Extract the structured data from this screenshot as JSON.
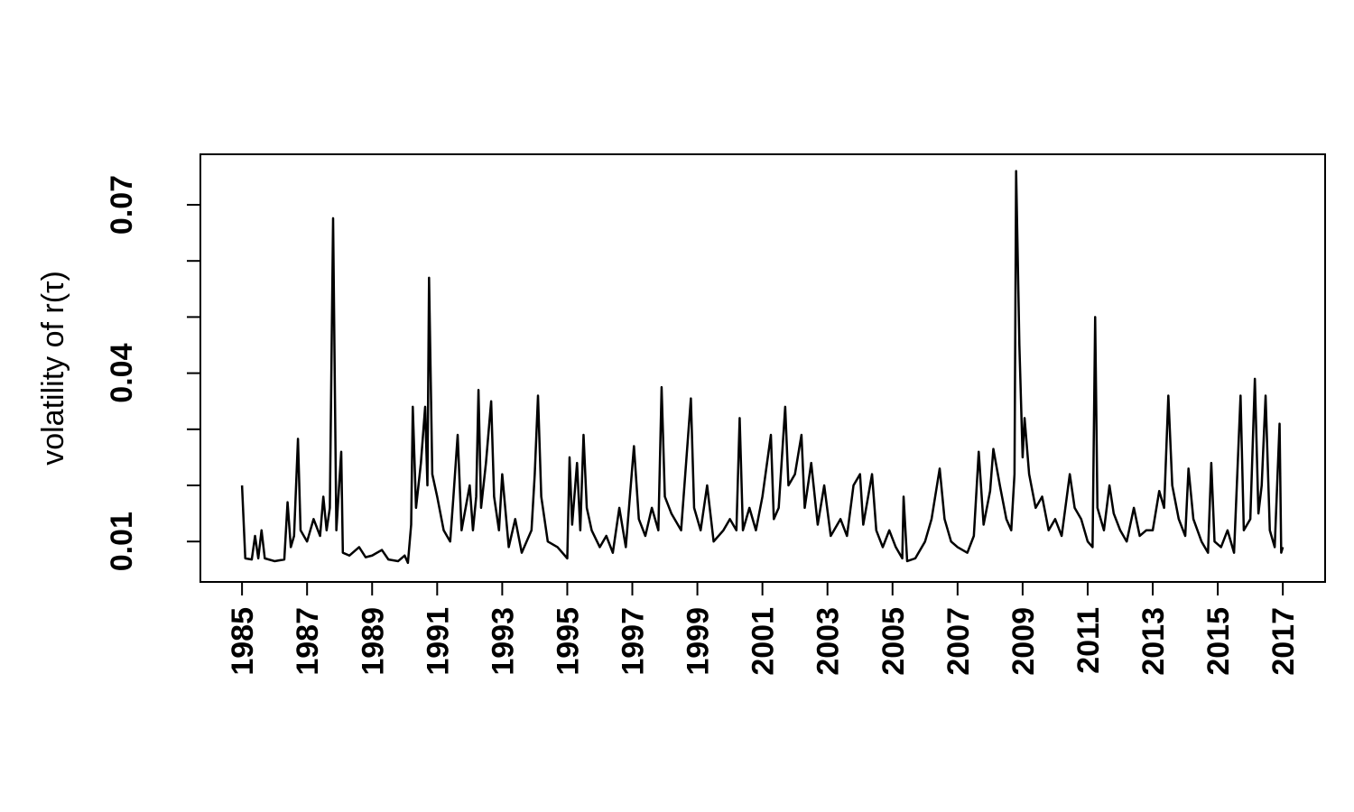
{
  "chart_data": {
    "type": "line",
    "ylabel": "volatility of  r(τ)",
    "color": "#000000",
    "x": [
      1985.0,
      1985.1,
      1985.3,
      1985.4,
      1985.5,
      1985.6,
      1985.7,
      1986.0,
      1986.3,
      1986.4,
      1986.5,
      1986.6,
      1986.72,
      1986.8,
      1987.0,
      1987.2,
      1987.4,
      1987.5,
      1987.6,
      1987.7,
      1987.8,
      1987.9,
      1988.05,
      1988.1,
      1988.3,
      1988.6,
      1988.8,
      1989.0,
      1989.3,
      1989.5,
      1989.8,
      1990.0,
      1990.1,
      1990.2,
      1990.25,
      1990.35,
      1990.5,
      1990.63,
      1990.7,
      1990.75,
      1990.85,
      1991.0,
      1991.2,
      1991.4,
      1991.5,
      1991.63,
      1991.75,
      1992.0,
      1992.1,
      1992.2,
      1992.27,
      1992.35,
      1992.5,
      1992.66,
      1992.75,
      1992.9,
      1993.0,
      1993.2,
      1993.4,
      1993.6,
      1993.9,
      1994.0,
      1994.1,
      1994.2,
      1994.4,
      1994.7,
      1995.0,
      1995.07,
      1995.15,
      1995.3,
      1995.4,
      1995.5,
      1995.6,
      1995.75,
      1996.0,
      1996.2,
      1996.4,
      1996.6,
      1996.8,
      1997.05,
      1997.2,
      1997.4,
      1997.6,
      1997.8,
      1997.9,
      1998.0,
      1998.2,
      1998.5,
      1998.8,
      1998.9,
      1999.1,
      1999.3,
      1999.5,
      1999.8,
      2000.0,
      2000.2,
      2000.3,
      2000.4,
      2000.6,
      2000.8,
      2001.0,
      2001.26,
      2001.35,
      2001.5,
      2001.7,
      2001.8,
      2002.0,
      2002.2,
      2002.3,
      2002.5,
      2002.7,
      2002.9,
      2003.1,
      2003.4,
      2003.6,
      2003.8,
      2004.0,
      2004.1,
      2004.37,
      2004.5,
      2004.7,
      2004.9,
      2005.1,
      2005.3,
      2005.34,
      2005.45,
      2005.7,
      2006.0,
      2006.2,
      2006.45,
      2006.6,
      2006.8,
      2007.0,
      2007.3,
      2007.5,
      2007.65,
      2007.8,
      2008.0,
      2008.1,
      2008.3,
      2008.5,
      2008.65,
      2008.75,
      2008.8,
      2008.9,
      2009.0,
      2009.06,
      2009.2,
      2009.4,
      2009.6,
      2009.8,
      2010.0,
      2010.2,
      2010.45,
      2010.6,
      2010.8,
      2011.0,
      2011.15,
      2011.23,
      2011.3,
      2011.5,
      2011.67,
      2011.8,
      2012.0,
      2012.2,
      2012.42,
      2012.6,
      2012.8,
      2013.0,
      2013.2,
      2013.35,
      2013.48,
      2013.6,
      2013.8,
      2014.0,
      2014.1,
      2014.25,
      2014.5,
      2014.7,
      2014.8,
      2014.9,
      2015.1,
      2015.3,
      2015.5,
      2015.7,
      2015.8,
      2016.0,
      2016.14,
      2016.25,
      2016.35,
      2016.47,
      2016.6,
      2016.75,
      2016.9,
      2016.95,
      2017.0
    ],
    "values": [
      0.02,
      0.007,
      0.0068,
      0.011,
      0.007,
      0.012,
      0.007,
      0.0065,
      0.0068,
      0.017,
      0.009,
      0.011,
      0.0283,
      0.012,
      0.01,
      0.014,
      0.011,
      0.018,
      0.012,
      0.016,
      0.0676,
      0.012,
      0.026,
      0.008,
      0.0075,
      0.009,
      0.0072,
      0.0075,
      0.0085,
      0.0068,
      0.0065,
      0.0075,
      0.0062,
      0.013,
      0.034,
      0.016,
      0.024,
      0.034,
      0.02,
      0.057,
      0.022,
      0.018,
      0.012,
      0.01,
      0.018,
      0.029,
      0.012,
      0.02,
      0.012,
      0.018,
      0.037,
      0.016,
      0.024,
      0.035,
      0.018,
      0.012,
      0.022,
      0.009,
      0.014,
      0.008,
      0.012,
      0.022,
      0.036,
      0.018,
      0.01,
      0.009,
      0.007,
      0.025,
      0.013,
      0.024,
      0.012,
      0.029,
      0.016,
      0.012,
      0.009,
      0.011,
      0.008,
      0.016,
      0.009,
      0.027,
      0.014,
      0.011,
      0.016,
      0.012,
      0.0375,
      0.018,
      0.015,
      0.012,
      0.0355,
      0.016,
      0.012,
      0.02,
      0.01,
      0.012,
      0.014,
      0.012,
      0.032,
      0.012,
      0.016,
      0.012,
      0.018,
      0.029,
      0.014,
      0.016,
      0.034,
      0.02,
      0.022,
      0.029,
      0.016,
      0.024,
      0.013,
      0.02,
      0.011,
      0.014,
      0.011,
      0.02,
      0.022,
      0.013,
      0.022,
      0.012,
      0.009,
      0.012,
      0.009,
      0.007,
      0.018,
      0.0065,
      0.007,
      0.01,
      0.014,
      0.023,
      0.014,
      0.01,
      0.009,
      0.008,
      0.011,
      0.026,
      0.013,
      0.019,
      0.0265,
      0.02,
      0.014,
      0.012,
      0.022,
      0.076,
      0.045,
      0.025,
      0.032,
      0.022,
      0.016,
      0.018,
      0.012,
      0.014,
      0.011,
      0.022,
      0.016,
      0.014,
      0.01,
      0.009,
      0.05,
      0.016,
      0.012,
      0.02,
      0.015,
      0.012,
      0.01,
      0.016,
      0.011,
      0.012,
      0.012,
      0.019,
      0.016,
      0.036,
      0.02,
      0.014,
      0.011,
      0.023,
      0.014,
      0.01,
      0.008,
      0.024,
      0.01,
      0.009,
      0.012,
      0.008,
      0.036,
      0.012,
      0.014,
      0.039,
      0.015,
      0.02,
      0.036,
      0.012,
      0.009,
      0.031,
      0.008,
      0.009
    ],
    "xlim": [
      1983.72,
      2018.3
    ],
    "xticks": [
      1985,
      1987,
      1989,
      1991,
      1993,
      1995,
      1997,
      1999,
      2001,
      2003,
      2005,
      2007,
      2009,
      2011,
      2013,
      2015,
      2017
    ],
    "ylim": [
      0.0028,
      0.079
    ],
    "yticks": [
      0.01,
      0.04,
      0.07
    ],
    "yminorticks": [
      0.02,
      0.03,
      0.05,
      0.06
    ]
  }
}
